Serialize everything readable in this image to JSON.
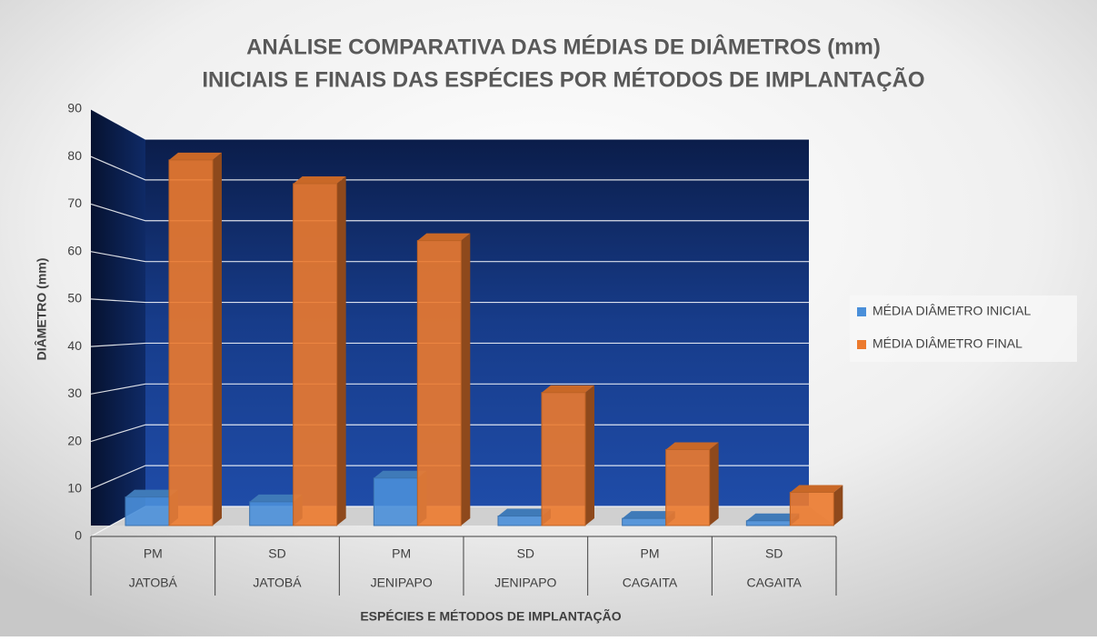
{
  "chart_data": {
    "type": "bar3d",
    "title": "ANÁLISE COMPARATIVA DAS MÉDIAS DE DIÂMETROS (mm)",
    "subtitle": "INICIAIS E FINAIS DAS ESPÉCIES POR MÉTODOS DE IMPLANTAÇÃO",
    "y_label": "DIÂMETRO (mm)",
    "x_label": "ESPÉCIES E MÉTODOS DE IMPLANTAÇÃO",
    "methods": [
      "PM",
      "SD",
      "PM",
      "SD",
      "PM",
      "SD"
    ],
    "species": [
      "JATOBÁ",
      "JATOBÁ",
      "JENIPAPO",
      "JENIPAPO",
      "CAGAITA",
      "CAGAITA"
    ],
    "series": [
      {
        "name": "MÉDIA DIÂMETRO INICIAL",
        "color": "#4a8fd9",
        "values": [
          6,
          5,
          10,
          2,
          1.5,
          1
        ]
      },
      {
        "name": "MÉDIA DIÂMETRO FINAL",
        "color": "#ec7a2e",
        "values": [
          77,
          72,
          60,
          28,
          16,
          7
        ]
      }
    ],
    "ylim": [
      0,
      90
    ],
    "yticks": [
      0,
      10,
      20,
      30,
      40,
      50,
      60,
      70,
      80,
      90
    ],
    "grid": true,
    "legend": "right"
  }
}
